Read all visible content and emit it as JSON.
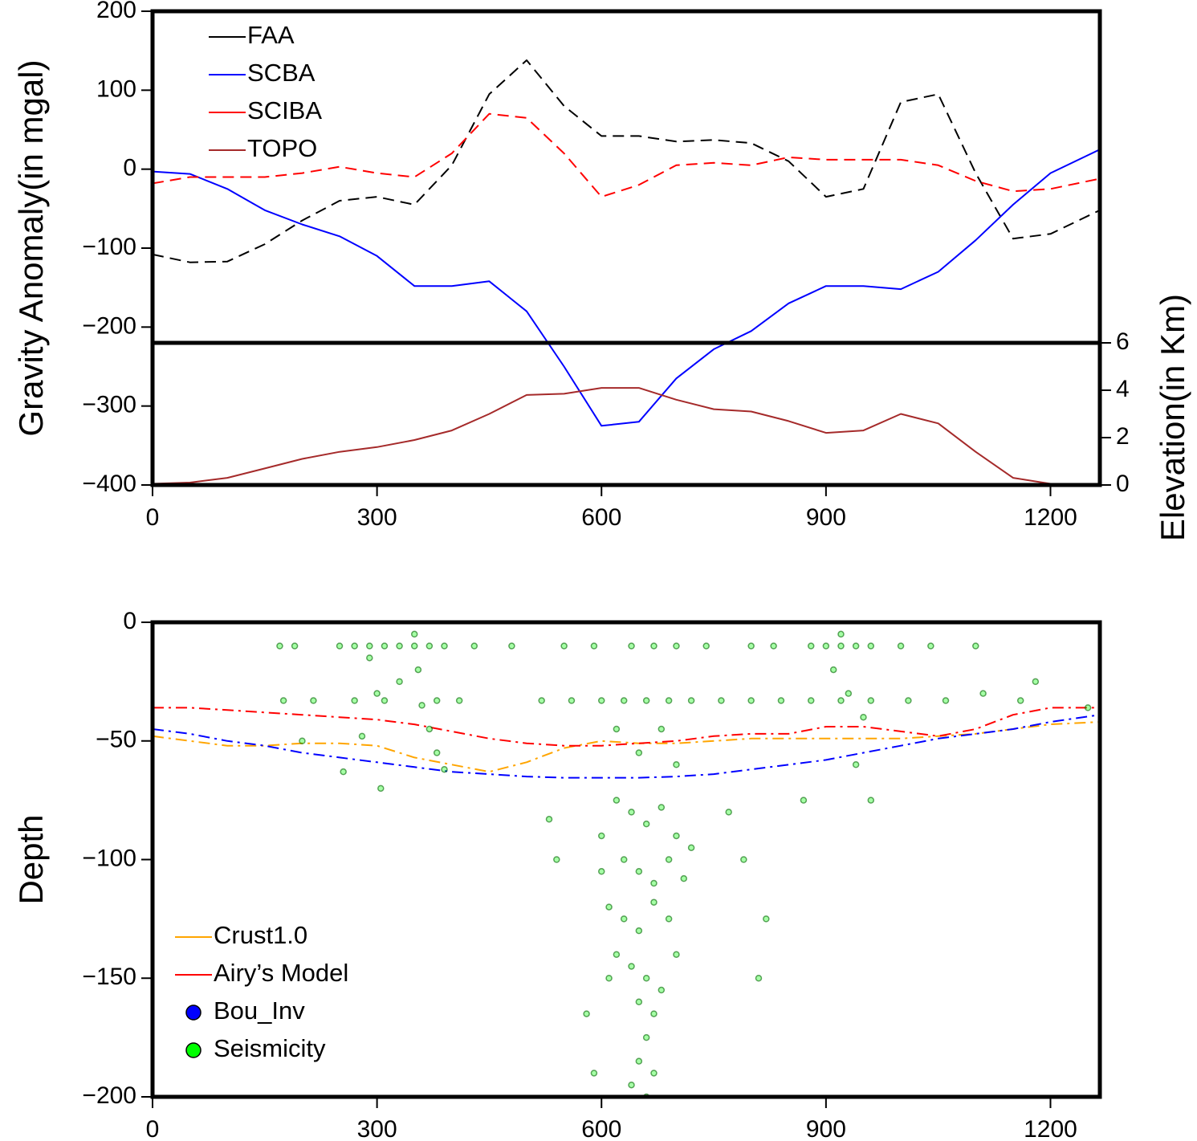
{
  "chart_data": [
    {
      "type": "line",
      "ylabel": "Gravity Anomaly(in mgal)",
      "y2label": "Elevation(in Km)",
      "xlim": [
        0,
        1266
      ],
      "xticks": [
        0,
        300,
        600,
        900,
        1200
      ],
      "ylim": [
        -400,
        200
      ],
      "yticks": [
        200,
        100,
        0,
        {
          "value": -100,
          "label": "−100"
        },
        {
          "value": -200,
          "label": "−200"
        },
        {
          "value": -300,
          "label": "−300"
        },
        {
          "value": -400,
          "label": "−400"
        }
      ],
      "y2lim": [
        0,
        6
      ],
      "y2ticks": [
        0,
        2,
        4,
        6
      ],
      "legend": "upper left",
      "x": [
        0,
        50,
        100,
        150,
        200,
        250,
        300,
        350,
        400,
        450,
        500,
        550,
        600,
        650,
        700,
        750,
        800,
        850,
        900,
        950,
        1000,
        1050,
        1100,
        1150,
        1200,
        1266
      ],
      "series": [
        {
          "name": "FAA",
          "color": "#000000",
          "dash": "dashed",
          "values": [
            -108,
            -118,
            -117,
            -95,
            -65,
            -40,
            -35,
            -45,
            5,
            95,
            138,
            80,
            42,
            42,
            35,
            37,
            33,
            10,
            -35,
            -25,
            85,
            95,
            -5,
            -88,
            -82,
            -52
          ]
        },
        {
          "name": "SCBA",
          "color": "#0000ff",
          "dash": "solid",
          "values": [
            -3,
            -6,
            -25,
            -52,
            -70,
            -85,
            -110,
            -148,
            -148,
            -142,
            -180,
            -250,
            -325,
            -320,
            -265,
            -228,
            -205,
            -170,
            -148,
            -148,
            -152,
            -130,
            -90,
            -45,
            -5,
            25
          ]
        },
        {
          "name": "SCIBA",
          "color": "#ff0000",
          "dash": "dashed",
          "values": [
            -18,
            -10,
            -10,
            -10,
            -5,
            3,
            -5,
            -10,
            20,
            70,
            65,
            20,
            -35,
            -20,
            5,
            8,
            5,
            15,
            12,
            12,
            12,
            5,
            -15,
            -28,
            -25,
            -12
          ]
        },
        {
          "name": "TOPO",
          "color": "#a52a2a",
          "dash": "solid",
          "axis": "y2",
          "values": [
            0.05,
            0.1,
            0.3,
            0.7,
            1.1,
            1.4,
            1.6,
            1.9,
            2.3,
            3.0,
            3.8,
            3.85,
            4.1,
            4.1,
            3.6,
            3.2,
            3.1,
            2.7,
            2.2,
            2.3,
            3.0,
            2.6,
            1.4,
            0.3,
            0.05,
            0.05
          ]
        }
      ]
    },
    {
      "type": "line",
      "ylabel": "Depth",
      "xlim": [
        0,
        1266
      ],
      "xticks": [
        0,
        300,
        600,
        900,
        1200
      ],
      "ylim": [
        -200,
        0
      ],
      "yticks": [
        0,
        {
          "value": -50,
          "label": "−50"
        },
        {
          "value": -100,
          "label": "−100"
        },
        {
          "value": -150,
          "label": "−150"
        },
        {
          "value": -200,
          "label": "−200"
        }
      ],
      "legend": "lower left",
      "x": [
        0,
        50,
        100,
        150,
        200,
        250,
        300,
        350,
        400,
        450,
        500,
        550,
        600,
        650,
        700,
        750,
        800,
        850,
        900,
        950,
        1000,
        1050,
        1100,
        1150,
        1200,
        1266
      ],
      "series": [
        {
          "name": "Crust1.0",
          "color": "#ffa500",
          "dash": "dashdot",
          "legend_symbol": "line",
          "values": [
            -48,
            -50,
            -52,
            -52,
            -51,
            -51,
            -52,
            -57,
            -60,
            -63,
            -59,
            -53,
            -50,
            -51,
            -51,
            -50,
            -49,
            -49,
            -49,
            -49,
            -49,
            -48,
            -47,
            -45,
            -43,
            -42
          ]
        },
        {
          "name": "Airy’s Model",
          "color": "#ff0000",
          "dash": "dashdot",
          "legend_symbol": "line",
          "values": [
            -36,
            -36,
            -37,
            -38,
            -39,
            -40,
            -41,
            -43,
            -46,
            -49,
            -51,
            -52,
            -52,
            -51,
            -50,
            -48,
            -47,
            -47,
            -44,
            -44,
            -46,
            -48,
            -45,
            -39,
            -36,
            -36
          ]
        },
        {
          "name": "Bou_Inv",
          "color": "#0000ff",
          "dash": "dashdot",
          "legend_symbol": "circle",
          "values": [
            -45,
            -47,
            -50,
            -52,
            -55,
            -57,
            -59,
            -61,
            -63,
            -64,
            -65,
            -65.5,
            -65.5,
            -65.5,
            -65,
            -64,
            -62,
            -60,
            -58,
            -55,
            -52,
            -49,
            -47,
            -45,
            -42,
            -39
          ]
        },
        {
          "name": "Seismicity",
          "color": "#00ff00",
          "type": "scatter",
          "legend_symbol": "circle",
          "x": [
            170,
            190,
            250,
            270,
            290,
            310,
            330,
            350,
            370,
            390,
            430,
            480,
            290,
            300,
            330,
            350,
            355,
            360,
            370,
            380,
            390,
            280,
            255,
            305,
            175,
            215,
            270,
            310,
            380,
            410,
            550,
            590,
            640,
            670,
            700,
            740,
            800,
            830,
            880,
            900,
            920,
            940,
            960,
            1000,
            1040,
            1100,
            920,
            910,
            930,
            950,
            940,
            960,
            870,
            520,
            560,
            600,
            630,
            660,
            690,
            720,
            760,
            800,
            840,
            880,
            920,
            960,
            1010,
            1060,
            1110,
            1160,
            620,
            680,
            700,
            650,
            530,
            540,
            600,
            620,
            640,
            660,
            680,
            700,
            720,
            630,
            650,
            670,
            690,
            710,
            600,
            610,
            630,
            650,
            670,
            690,
            700,
            620,
            640,
            660,
            680,
            650,
            670,
            660,
            650,
            670,
            660,
            640,
            590,
            610,
            580,
            770,
            790,
            820,
            810,
            1250,
            1180,
            200
          ],
          "values": [
            -10,
            -10,
            -10,
            -10,
            -10,
            -10,
            -10,
            -10,
            -10,
            -10,
            -10,
            -10,
            -15,
            -30,
            -25,
            -5,
            -20,
            -35,
            -45,
            -55,
            -62,
            -48,
            -63,
            -70,
            -33,
            -33,
            -33,
            -33,
            -33,
            -33,
            -10,
            -10,
            -10,
            -10,
            -10,
            -10,
            -10,
            -10,
            -10,
            -10,
            -10,
            -10,
            -10,
            -10,
            -10,
            -10,
            -5,
            -20,
            -30,
            -40,
            -60,
            -75,
            -75,
            -33,
            -33,
            -33,
            -33,
            -33,
            -33,
            -33,
            -33,
            -33,
            -33,
            -33,
            -33,
            -33,
            -33,
            -33,
            -30,
            -33,
            -45,
            -45,
            -60,
            -55,
            -83,
            -100,
            -90,
            -75,
            -80,
            -85,
            -78,
            -90,
            -95,
            -100,
            -105,
            -110,
            -100,
            -108,
            -105,
            -120,
            -125,
            -130,
            -118,
            -125,
            -140,
            -140,
            -145,
            -150,
            -155,
            -160,
            -165,
            -175,
            -185,
            -190,
            -200,
            -195,
            -190,
            -150,
            -165,
            -80,
            -100,
            -125,
            -150,
            -36,
            -25,
            -50
          ]
        }
      ]
    }
  ]
}
